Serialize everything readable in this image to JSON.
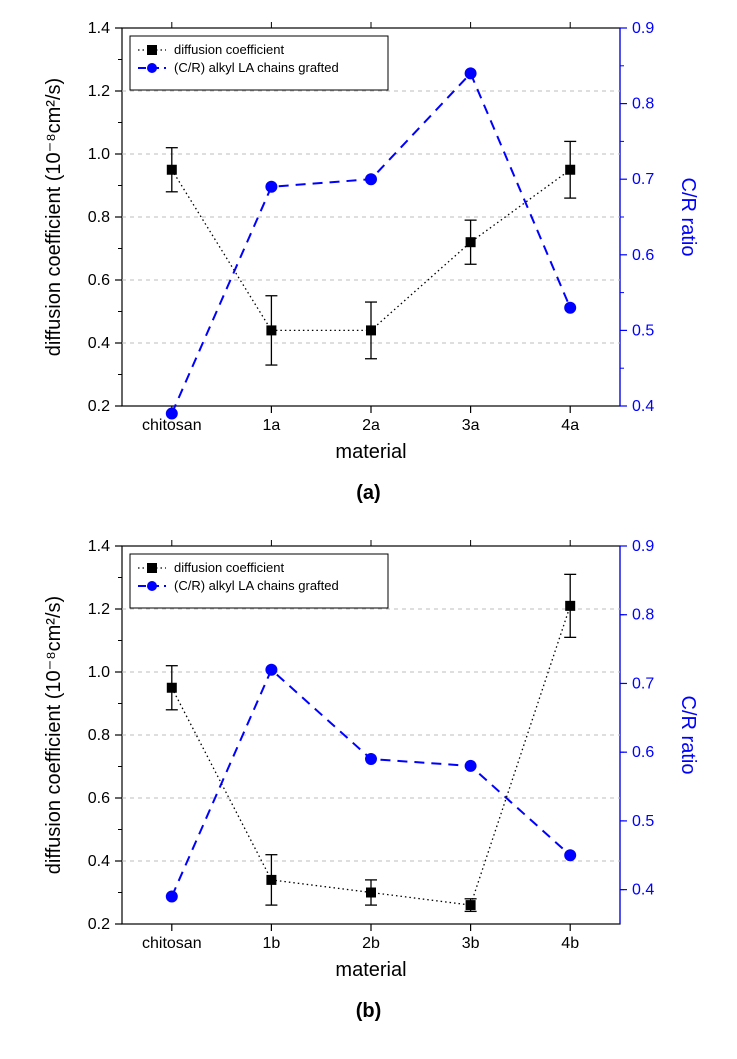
{
  "panels": [
    {
      "id": "a",
      "sublabel": "(a)",
      "x_categories": [
        "chitosan",
        "1a",
        "2a",
        "3a",
        "4a"
      ],
      "left_axis": {
        "label": "diffusion coefficient (10⁻⁸cm²/s)",
        "min": 0.2,
        "max": 1.4,
        "step": 0.2,
        "color": "#000000"
      },
      "right_axis": {
        "label": "C/R ratio",
        "min": 0.4,
        "max": 0.9,
        "step": 0.1,
        "color": "#0000ff"
      },
      "series_diffusion": {
        "name": "diffusion coefficient",
        "values": [
          0.95,
          0.44,
          0.44,
          0.72,
          0.95
        ],
        "err": [
          0.07,
          0.11,
          0.09,
          0.07,
          0.09
        ],
        "marker_color": "#000000",
        "line_style": "dotted"
      },
      "series_cr": {
        "name": "(C/R) alkyl LA chains grafted",
        "values": [
          0.39,
          0.69,
          0.7,
          0.84,
          0.53
        ],
        "marker_color": "#0000ff",
        "line_style": "dashed"
      },
      "x_label": "material",
      "legend": {
        "items": [
          {
            "marker": "square",
            "color": "#000000",
            "line": "dotted",
            "label": "diffusion coefficient"
          },
          {
            "marker": "circle",
            "color": "#0000ff",
            "line": "dashed",
            "label": "(C/R) alkyl LA chains grafted"
          }
        ]
      },
      "grid_color": "#bdbdbd",
      "background": "#ffffff",
      "axis_fontsize": 20,
      "tick_fontsize": 16,
      "legend_fontsize": 13
    },
    {
      "id": "b",
      "sublabel": "(b)",
      "x_categories": [
        "chitosan",
        "1b",
        "2b",
        "3b",
        "4b"
      ],
      "left_axis": {
        "label": "diffusion coefficient (10⁻⁸cm²/s)",
        "min": 0.2,
        "max": 1.4,
        "step": 0.2,
        "color": "#000000"
      },
      "right_axis": {
        "label": "C/R ratio",
        "min": 0.35,
        "max": 0.9,
        "step": 0.1,
        "tick_start": 0.4,
        "color": "#0000ff"
      },
      "series_diffusion": {
        "name": "diffusion coefficient",
        "values": [
          0.95,
          0.34,
          0.3,
          0.26,
          1.21
        ],
        "err": [
          0.07,
          0.08,
          0.04,
          0.02,
          0.1
        ],
        "marker_color": "#000000",
        "line_style": "dotted"
      },
      "series_cr": {
        "name": "(C/R) alkyl LA chains grafted",
        "values": [
          0.39,
          0.72,
          0.59,
          0.58,
          0.45
        ],
        "marker_color": "#0000ff",
        "line_style": "dashed"
      },
      "x_label": "material",
      "legend": {
        "items": [
          {
            "marker": "square",
            "color": "#000000",
            "line": "dotted",
            "label": "diffusion coefficient"
          },
          {
            "marker": "circle",
            "color": "#0000ff",
            "line": "dashed",
            "label": "(C/R) alkyl LA chains grafted"
          }
        ]
      },
      "grid_color": "#bdbdbd",
      "background": "#ffffff",
      "axis_fontsize": 20,
      "tick_fontsize": 16,
      "legend_fontsize": 13
    }
  ]
}
